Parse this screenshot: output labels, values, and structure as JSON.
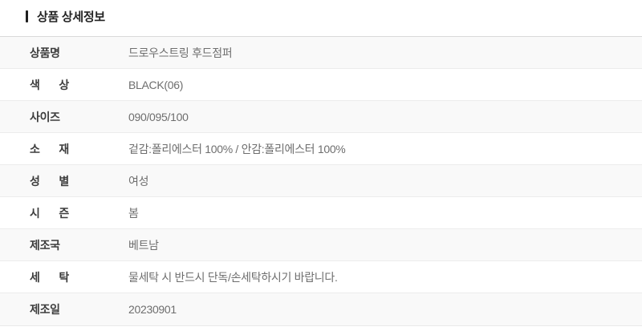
{
  "header": {
    "title": "상품 상세정보"
  },
  "table": {
    "rows": [
      {
        "label": "상품명",
        "value": "드로우스트링 후드점퍼"
      },
      {
        "label": "색 상",
        "value": "BLACK(06)"
      },
      {
        "label": "사이즈",
        "value": "090/095/100"
      },
      {
        "label": "소 재",
        "value": "겉감:폴리에스터 100% / 안감:폴리에스터 100%"
      },
      {
        "label": "성 별",
        "value": "여성"
      },
      {
        "label": "시 즌",
        "value": "봄"
      },
      {
        "label": "제조국",
        "value": "베트남"
      },
      {
        "label": "세 탁",
        "value": "물세탁 시 반드시 단독/손세탁하시기 바랍니다."
      },
      {
        "label": "제조일",
        "value": "20230901"
      }
    ]
  },
  "colors": {
    "title_text": "#232323",
    "title_bar": "#1f1f1f",
    "label_text": "#3c3c3c",
    "value_text": "#6e6e6e",
    "row_alt_background": "#f9f9f9",
    "row_background": "#ffffff",
    "separator": "#ececec",
    "table_top_border": "#d9d9d9"
  }
}
